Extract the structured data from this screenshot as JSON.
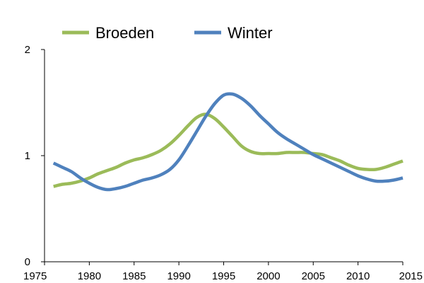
{
  "chart_data": {
    "type": "line",
    "title": "",
    "xlabel": "",
    "ylabel": "",
    "xlim": [
      1975,
      2015
    ],
    "ylim": [
      0,
      2
    ],
    "x_ticks": [
      "1975",
      "1980",
      "1985",
      "1990",
      "1995",
      "2000",
      "2005",
      "2010",
      "2015"
    ],
    "y_ticks": [
      "0",
      "1",
      "2"
    ],
    "grid": false,
    "legend_position": "top",
    "x": [
      1976,
      1977,
      1978,
      1979,
      1980,
      1981,
      1982,
      1983,
      1984,
      1985,
      1986,
      1987,
      1988,
      1989,
      1990,
      1991,
      1992,
      1993,
      1994,
      1995,
      1996,
      1997,
      1998,
      1999,
      2000,
      2001,
      2002,
      2003,
      2004,
      2005,
      2006,
      2007,
      2008,
      2009,
      2010,
      2011,
      2012,
      2013,
      2014,
      2015
    ],
    "series": [
      {
        "name": "Broeden",
        "color": "#9bbb59",
        "values": [
          0.71,
          0.73,
          0.74,
          0.76,
          0.79,
          0.83,
          0.86,
          0.89,
          0.93,
          0.96,
          0.98,
          1.01,
          1.05,
          1.11,
          1.19,
          1.28,
          1.36,
          1.39,
          1.35,
          1.27,
          1.18,
          1.09,
          1.04,
          1.02,
          1.02,
          1.02,
          1.03,
          1.03,
          1.03,
          1.02,
          1.01,
          0.98,
          0.95,
          0.91,
          0.88,
          0.87,
          0.87,
          0.89,
          0.92,
          0.95
        ]
      },
      {
        "name": "Winter",
        "color": "#4f81bd",
        "values": [
          0.93,
          0.89,
          0.85,
          0.79,
          0.74,
          0.7,
          0.68,
          0.69,
          0.71,
          0.74,
          0.77,
          0.79,
          0.82,
          0.87,
          0.96,
          1.09,
          1.23,
          1.37,
          1.49,
          1.57,
          1.58,
          1.54,
          1.47,
          1.38,
          1.3,
          1.22,
          1.16,
          1.11,
          1.06,
          1.01,
          0.97,
          0.93,
          0.89,
          0.85,
          0.81,
          0.78,
          0.76,
          0.76,
          0.77,
          0.79
        ]
      }
    ]
  }
}
